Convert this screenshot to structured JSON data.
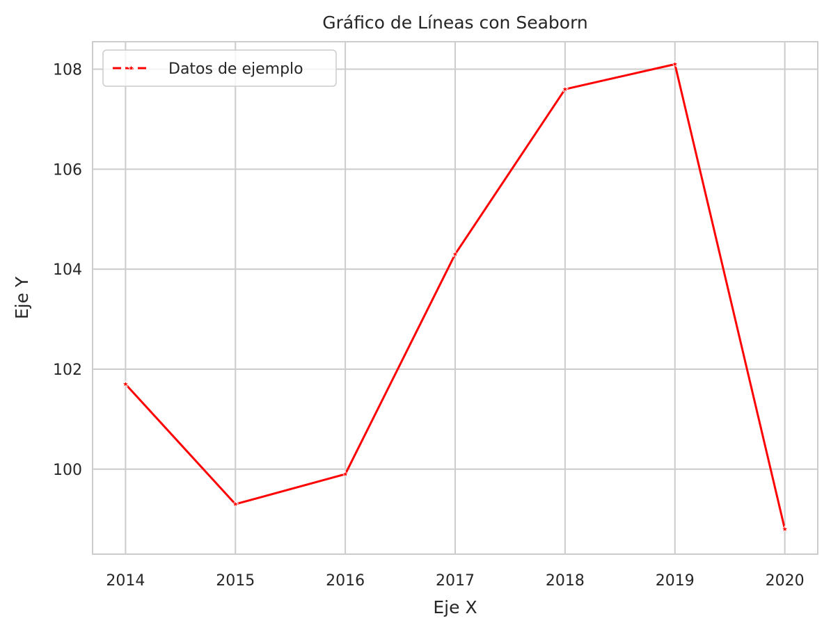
{
  "chart_data": {
    "type": "line",
    "title": "Gráfico de Líneas con Seaborn",
    "xlabel": "Eje X",
    "ylabel": "Eje Y",
    "x": [
      2014,
      2015,
      2016,
      2017,
      2018,
      2019,
      2020
    ],
    "x_tick_labels": [
      "2014",
      "2015",
      "2016",
      "2017",
      "2018",
      "2019",
      "2020"
    ],
    "y_tick_values": [
      100,
      102,
      104,
      106,
      108
    ],
    "y_tick_labels": [
      "100",
      "102",
      "104",
      "106",
      "108"
    ],
    "xlim": [
      2013.7,
      2020.3
    ],
    "ylim": [
      98.3,
      108.55
    ],
    "grid": true,
    "legend_position": "upper-left",
    "series": [
      {
        "name": "Datos de ejemplo",
        "color": "#ff0000",
        "marker": "star",
        "values": [
          101.7,
          99.3,
          99.9,
          104.3,
          107.6,
          108.1,
          98.8
        ]
      }
    ]
  }
}
